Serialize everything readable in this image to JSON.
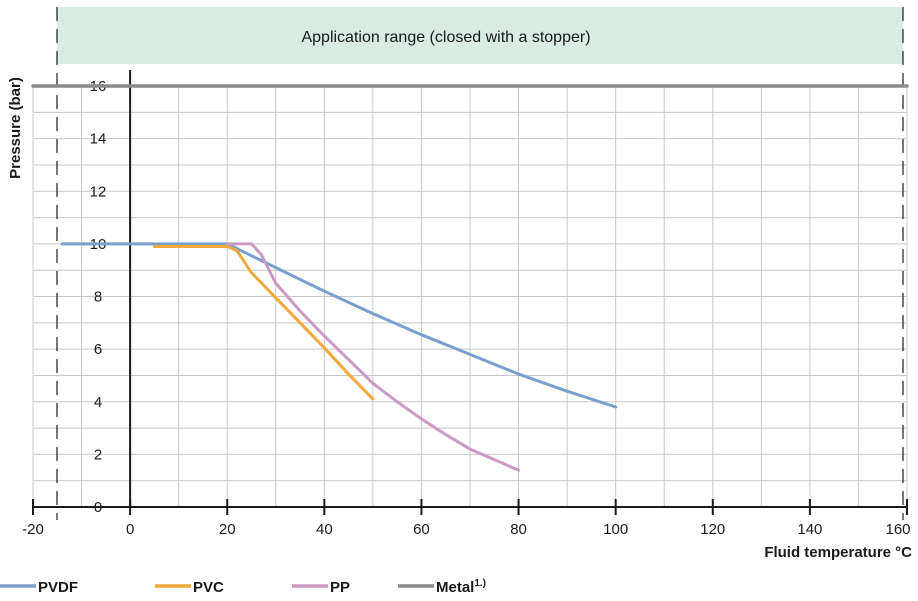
{
  "chart_data": {
    "type": "line",
    "xlabel": "Fluid temperature °C",
    "ylabel": "Pressure (bar)",
    "xlim": [
      -20,
      160
    ],
    "ylim": [
      0,
      16
    ],
    "x_ticks": [
      -20,
      0,
      20,
      40,
      60,
      80,
      100,
      120,
      140,
      160
    ],
    "y_ticks": [
      0,
      2,
      4,
      6,
      8,
      10,
      12,
      14,
      16
    ],
    "grid": true,
    "legend_position": "bottom-left",
    "annotations": [
      {
        "text": "Application range (closed with a stopper)",
        "x_range": [
          -14,
          160
        ],
        "note_text": ""
      }
    ],
    "application_range_x": [
      -14,
      160
    ],
    "series": [
      {
        "name": "PVDF",
        "legend_sup": "",
        "color": "#7b9fcd",
        "points": [
          [
            -14,
            10
          ],
          [
            20,
            10
          ],
          [
            30,
            9.1
          ],
          [
            40,
            8.2
          ],
          [
            50,
            7.35
          ],
          [
            60,
            6.55
          ],
          [
            70,
            5.8
          ],
          [
            80,
            5.05
          ],
          [
            90,
            4.4
          ],
          [
            100,
            3.8
          ]
        ]
      },
      {
        "name": "PVC",
        "legend_sup": "",
        "color": "#f2a93b",
        "points": [
          [
            5,
            9.9
          ],
          [
            20,
            9.9
          ],
          [
            22,
            9.75
          ],
          [
            25,
            8.9
          ],
          [
            30,
            7.95
          ],
          [
            35,
            7.0
          ],
          [
            40,
            6.05
          ],
          [
            45,
            5.05
          ],
          [
            50,
            4.1
          ]
        ]
      },
      {
        "name": "PP",
        "legend_sup": "",
        "color": "#c99bc4",
        "points": [
          [
            20,
            10
          ],
          [
            25,
            10
          ],
          [
            27,
            9.6
          ],
          [
            30,
            8.5
          ],
          [
            35,
            7.45
          ],
          [
            40,
            6.5
          ],
          [
            45,
            5.6
          ],
          [
            50,
            4.7
          ],
          [
            55,
            4.0
          ],
          [
            60,
            3.35
          ],
          [
            65,
            2.75
          ],
          [
            70,
            2.2
          ],
          [
            75,
            1.8
          ],
          [
            80,
            1.4
          ]
        ]
      },
      {
        "name": "Metal",
        "legend_sup": "1.)",
        "color": "#8a8a8a",
        "points": [
          [
            -20,
            16
          ],
          [
            160,
            16
          ]
        ]
      }
    ]
  },
  "colors": {
    "band_fill": "#d9ebe2",
    "grid": "#c8c8c8",
    "axis": "#1a1a1a"
  }
}
